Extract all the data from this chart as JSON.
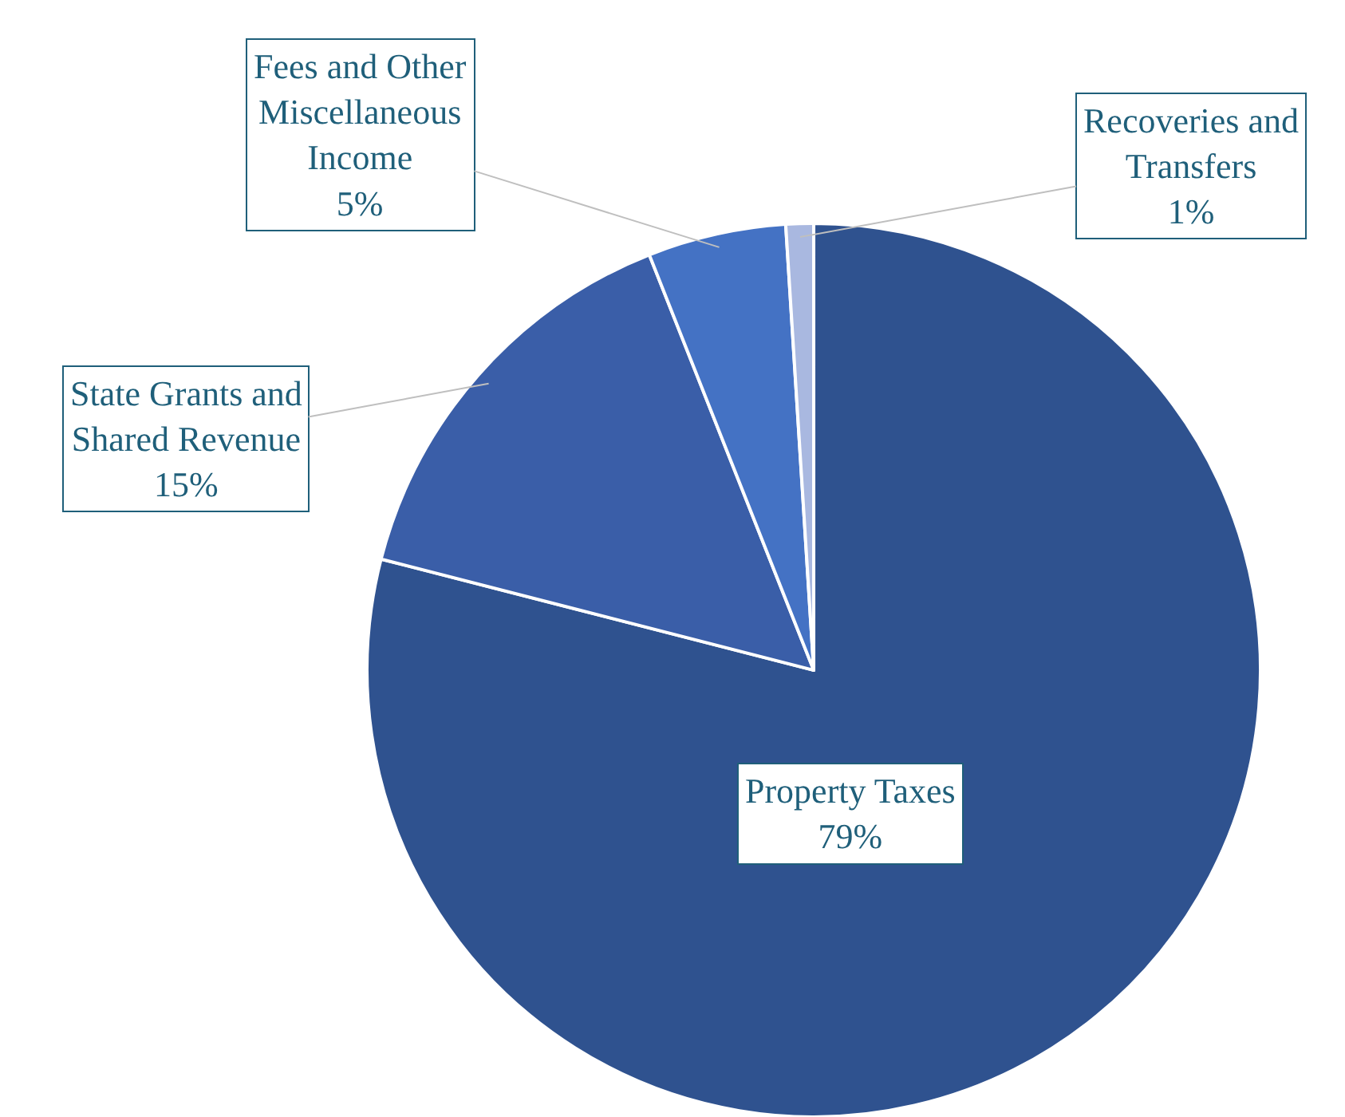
{
  "chart_data": {
    "type": "pie",
    "categories": [
      "Property Taxes",
      "State Grants and Shared Revenue",
      "Fees and Other Miscellaneous Income",
      "Recoveries and Transfers"
    ],
    "values": [
      79,
      15,
      5,
      1
    ],
    "value_labels": [
      "79%",
      "15%",
      "5%",
      "1%"
    ],
    "colors": [
      "#2f528f",
      "#3a5ea8",
      "#4472c4",
      "#a9b8e0"
    ],
    "legend": false
  }
}
